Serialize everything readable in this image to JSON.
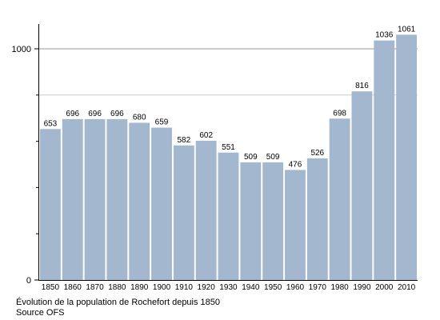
{
  "chart_data": {
    "type": "bar",
    "categories": [
      "1850",
      "1860",
      "1870",
      "1880",
      "1890",
      "1900",
      "1910",
      "1920",
      "1930",
      "1940",
      "1950",
      "1960",
      "1970",
      "1980",
      "1990",
      "2000",
      "2010"
    ],
    "values": [
      653,
      696,
      696,
      696,
      680,
      659,
      582,
      602,
      551,
      509,
      509,
      476,
      526,
      698,
      816,
      1036,
      1061
    ],
    "ylim": [
      0,
      1100
    ],
    "y_tick_labels": [
      0,
      1000
    ],
    "gridlines": [
      800,
      1000
    ],
    "bar_color": "#a3b7cf",
    "grid_color": "#cccccc",
    "major_grid_color": "#999999"
  },
  "caption": {
    "line1": "Évolution de la population de Rochefort depuis 1850",
    "line2": "Source OFS"
  }
}
